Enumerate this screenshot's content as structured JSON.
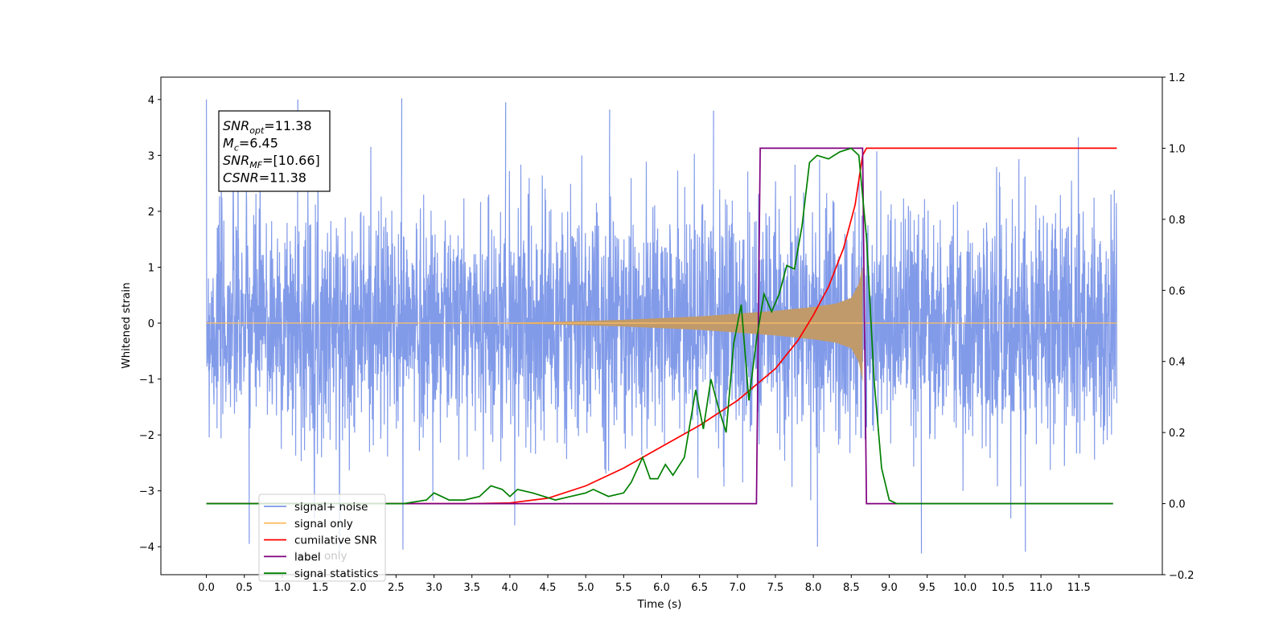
{
  "chart_data": {
    "type": "line",
    "xlabel": "Time (s)",
    "ylabel": "Whitened strain",
    "xlim": [
      -0.6,
      12.6
    ],
    "ylim": [
      -4.5,
      4.4
    ],
    "y2lim": [
      -0.2,
      1.2
    ],
    "x_ticks": [
      0.0,
      0.5,
      1.0,
      1.5,
      2.0,
      2.5,
      3.0,
      3.5,
      4.0,
      4.5,
      5.0,
      5.5,
      6.0,
      6.5,
      7.0,
      7.5,
      8.0,
      8.5,
      9.0,
      9.5,
      10.0,
      10.5,
      11.0,
      11.5
    ],
    "x_tick_labels": [
      "0.0",
      "0.5",
      "1.0",
      "1.5",
      "2.0",
      "2.5",
      "3.0",
      "3.5",
      "4.0",
      "4.5",
      "5.0",
      "5.5",
      "6.0",
      "6.5",
      "7.0",
      "7.5",
      "8.0",
      "8.5",
      "9.0",
      "9.5",
      "10.0",
      "10.5",
      "11.0",
      "11.5"
    ],
    "y_ticks": [
      -4,
      -3,
      -2,
      -1,
      0,
      1,
      2,
      3,
      4
    ],
    "y_tick_labels": [
      "−4",
      "−3",
      "−2",
      "−1",
      "0",
      "1",
      "2",
      "3",
      "4"
    ],
    "y2_ticks": [
      -0.2,
      0.0,
      0.2,
      0.4,
      0.6,
      0.8,
      1.0,
      1.2
    ],
    "y2_tick_labels": [
      "−0.2",
      "0.0",
      "0.2",
      "0.4",
      "0.6",
      "0.8",
      "1.0",
      "1.2"
    ],
    "grid": false,
    "legend_position": "bottom-left",
    "noise": {
      "x_range": [
        0.0,
        12.0
      ],
      "typical_amplitude": 1.0,
      "peak_values": [
        4.0,
        4.02,
        3.95,
        3.82,
        3.8,
        -4.0,
        -4.12,
        -4.09,
        -3.95
      ]
    },
    "series": [
      {
        "name": "signal+ noise",
        "axis": "left",
        "color": "#7b96e8",
        "kind": "noise"
      },
      {
        "name": "signal only",
        "axis": "left",
        "color": "#ffbf66",
        "kind": "chirp",
        "x_start": 0.0,
        "x_merger": 8.65,
        "x_end": 12.0,
        "envelope": {
          "x": [
            3.5,
            4.5,
            5.5,
            6.5,
            7.0,
            7.5,
            8.0,
            8.3,
            8.5,
            8.6,
            8.65
          ],
          "y": [
            0.0,
            0.02,
            0.06,
            0.12,
            0.17,
            0.22,
            0.29,
            0.35,
            0.45,
            0.7,
            1.05
          ]
        }
      },
      {
        "name": "cumilative SNR",
        "axis": "right",
        "color": "#ff0000",
        "x": [
          0.0,
          3.5,
          4.0,
          4.5,
          5.0,
          5.5,
          6.0,
          6.5,
          7.0,
          7.5,
          7.8,
          8.0,
          8.2,
          8.4,
          8.55,
          8.65,
          8.7,
          12.0
        ],
        "y": [
          0.0,
          0.0,
          0.002,
          0.015,
          0.05,
          0.1,
          0.16,
          0.22,
          0.29,
          0.38,
          0.46,
          0.53,
          0.61,
          0.72,
          0.84,
          0.98,
          1.0,
          1.0
        ]
      },
      {
        "name": "label",
        "axis": "right",
        "color": "#800080",
        "x": [
          0.0,
          7.25,
          7.3,
          8.65,
          8.7,
          11.95
        ],
        "y": [
          0.0,
          0.0,
          1.0,
          1.0,
          0.0,
          0.0
        ]
      },
      {
        "name": "signal statistics",
        "axis": "right",
        "color": "#008000",
        "x": [
          0.0,
          2.6,
          2.9,
          3.0,
          3.1,
          3.2,
          3.4,
          3.6,
          3.75,
          3.9,
          4.0,
          4.1,
          4.3,
          4.45,
          4.6,
          4.8,
          5.0,
          5.1,
          5.3,
          5.5,
          5.6,
          5.75,
          5.85,
          5.95,
          6.05,
          6.15,
          6.3,
          6.45,
          6.55,
          6.65,
          6.75,
          6.85,
          6.95,
          7.05,
          7.15,
          7.25,
          7.35,
          7.45,
          7.55,
          7.65,
          7.75,
          7.85,
          7.95,
          8.05,
          8.2,
          8.35,
          8.5,
          8.6,
          8.7,
          8.8,
          8.9,
          9.0,
          9.1,
          11.95
        ],
        "y": [
          0.0,
          0.0,
          0.01,
          0.03,
          0.02,
          0.01,
          0.01,
          0.02,
          0.05,
          0.04,
          0.02,
          0.04,
          0.03,
          0.02,
          0.01,
          0.02,
          0.03,
          0.04,
          0.02,
          0.03,
          0.06,
          0.13,
          0.07,
          0.07,
          0.11,
          0.08,
          0.13,
          0.32,
          0.21,
          0.35,
          0.27,
          0.2,
          0.45,
          0.56,
          0.29,
          0.46,
          0.59,
          0.54,
          0.59,
          0.67,
          0.66,
          0.78,
          0.96,
          0.98,
          0.97,
          0.99,
          1.0,
          0.98,
          0.75,
          0.35,
          0.1,
          0.01,
          0.0,
          0.0
        ]
      }
    ],
    "annotation": {
      "lines": [
        {
          "main": "SNR",
          "sub": "opt",
          "value": "=11.38"
        },
        {
          "main": "M",
          "sub": "c",
          "value": "=6.45"
        },
        {
          "main": "SNR",
          "sub": "MF",
          "value": "=[10.66]"
        },
        {
          "main": "CSNR",
          "sub": "",
          "value": "=11.38"
        }
      ]
    },
    "legend": [
      {
        "label": "signal+ noise",
        "color": "#7b96e8"
      },
      {
        "label": "signal only",
        "color": "#ffbf66"
      },
      {
        "label": "cumilative SNR",
        "color": "#ff0000"
      },
      {
        "label": "label",
        "color": "#800080"
      },
      {
        "label": "signal statistics",
        "color": "#008000"
      }
    ],
    "ghost_legend_text": "label only"
  }
}
